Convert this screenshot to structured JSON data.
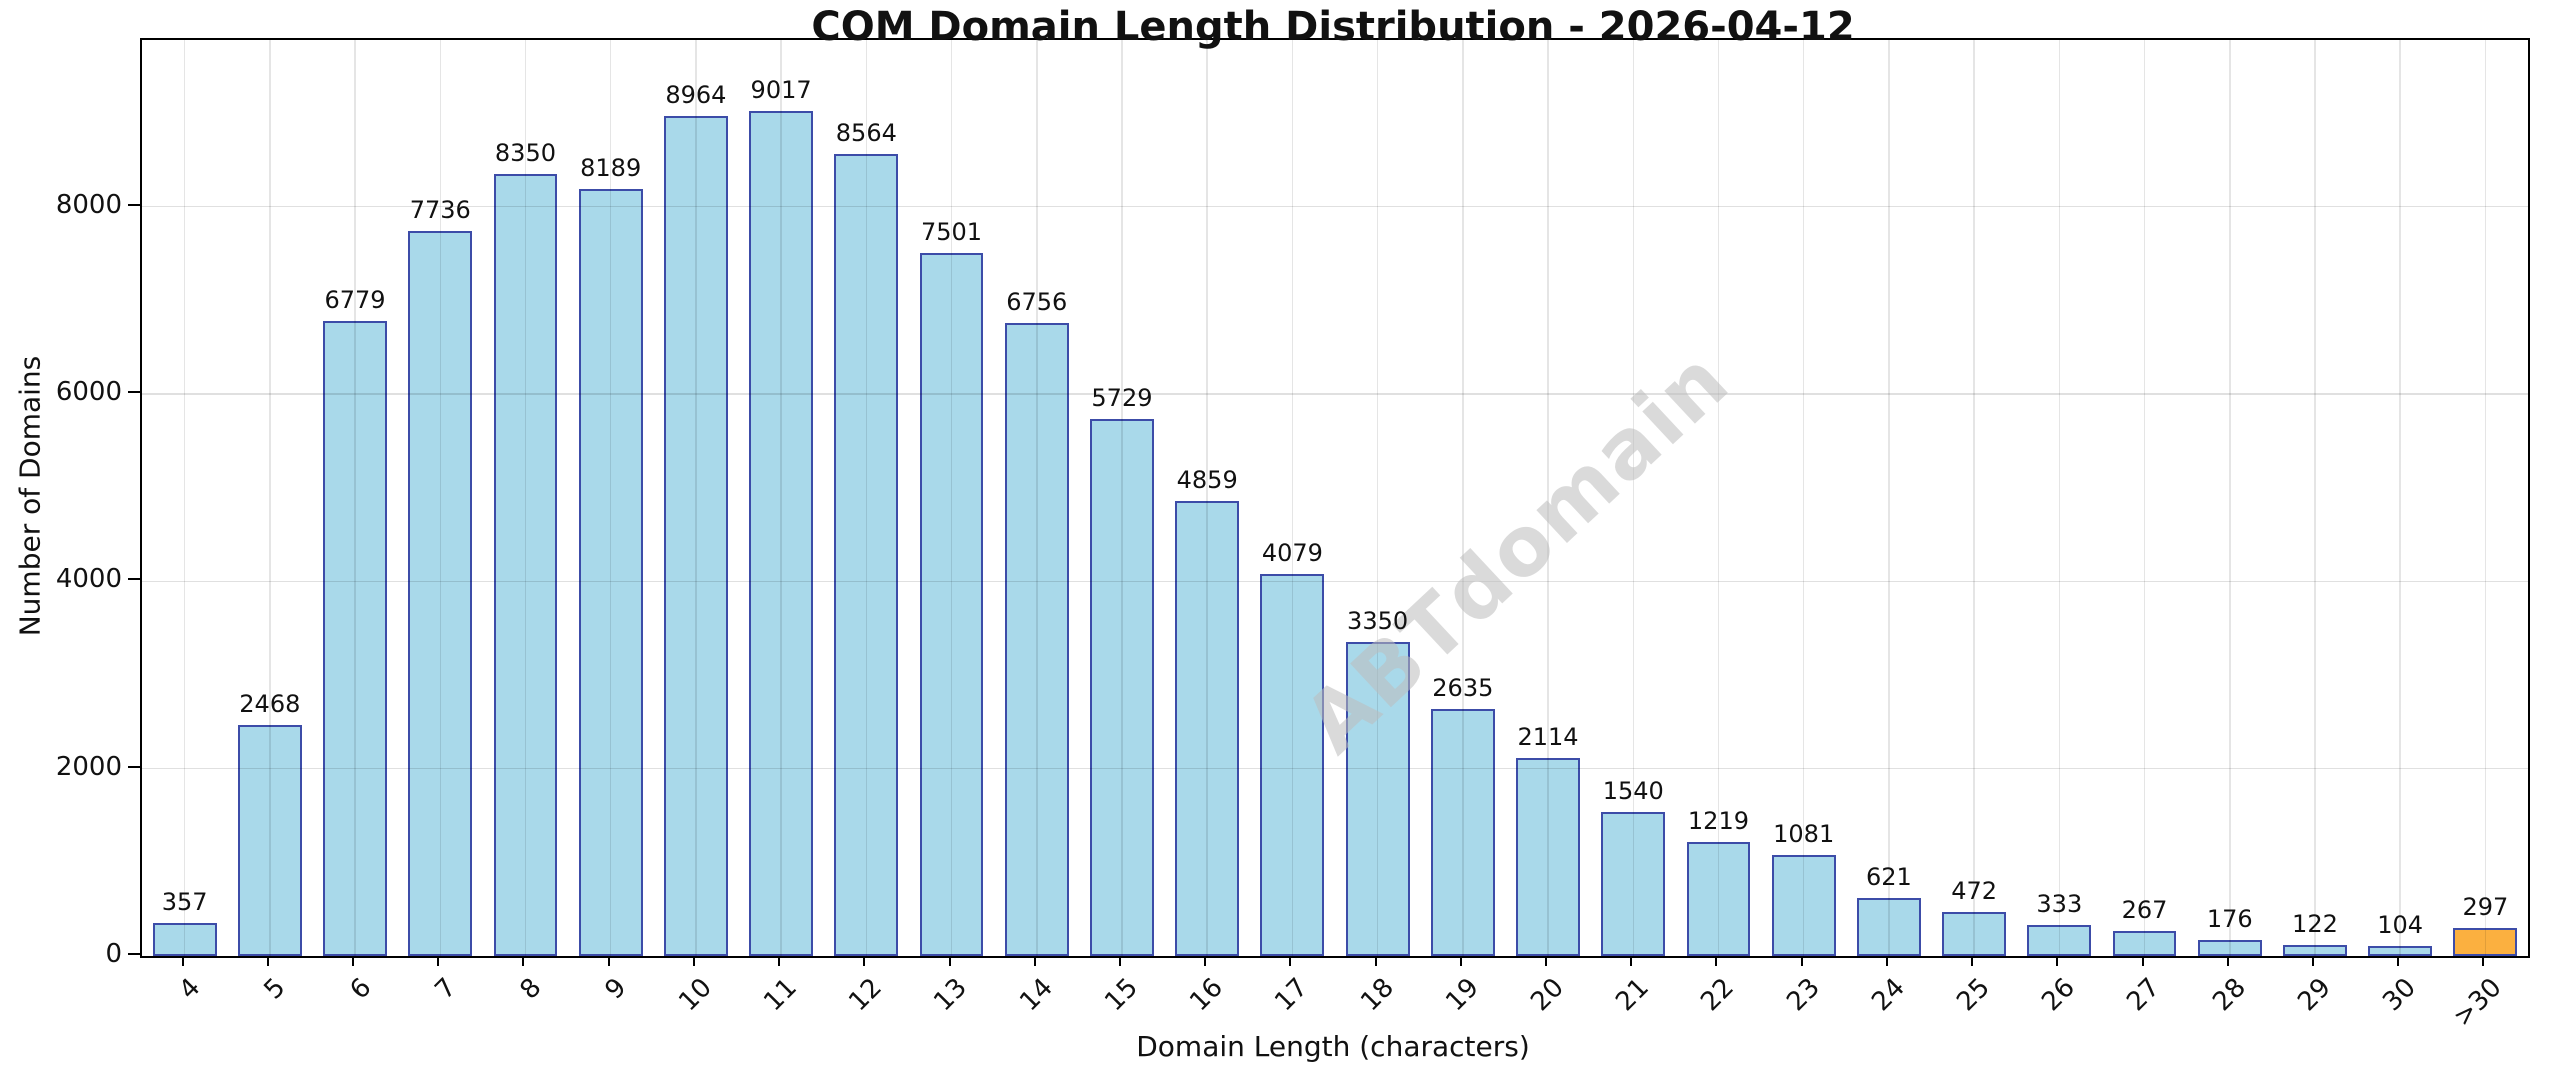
{
  "chart_data": {
    "type": "bar",
    "title": "COM Domain Length Distribution - 2026-04-12",
    "xlabel": "Domain Length (characters)",
    "ylabel": "Number of Domains",
    "categories": [
      "4",
      "5",
      "6",
      "7",
      "8",
      "9",
      "10",
      "11",
      "12",
      "13",
      "14",
      "15",
      "16",
      "17",
      "18",
      "19",
      "20",
      "21",
      "22",
      "23",
      "24",
      "25",
      "26",
      "27",
      "28",
      "29",
      "30",
      ">30"
    ],
    "values": [
      357,
      2468,
      6779,
      7736,
      8350,
      8189,
      8964,
      9017,
      8564,
      7501,
      6756,
      5729,
      4859,
      4079,
      3350,
      2635,
      2114,
      1540,
      1219,
      1081,
      621,
      472,
      333,
      267,
      176,
      122,
      104,
      297
    ],
    "y_ticks": [
      0,
      2000,
      4000,
      6000,
      8000
    ],
    "y_tick_labels": [
      "0",
      "2000",
      "4000",
      "6000",
      "8000"
    ],
    "ylim": [
      0,
      9780
    ],
    "grid": true,
    "legend": "none",
    "bar_color": "#A9D9EA",
    "bar_edge_color": "#3C4CA8",
    "highlight_bar_color": "#FBB040",
    "highlight_index": 27
  },
  "watermark": {
    "text": "ABTdomain",
    "color": "#bdbdbd"
  }
}
